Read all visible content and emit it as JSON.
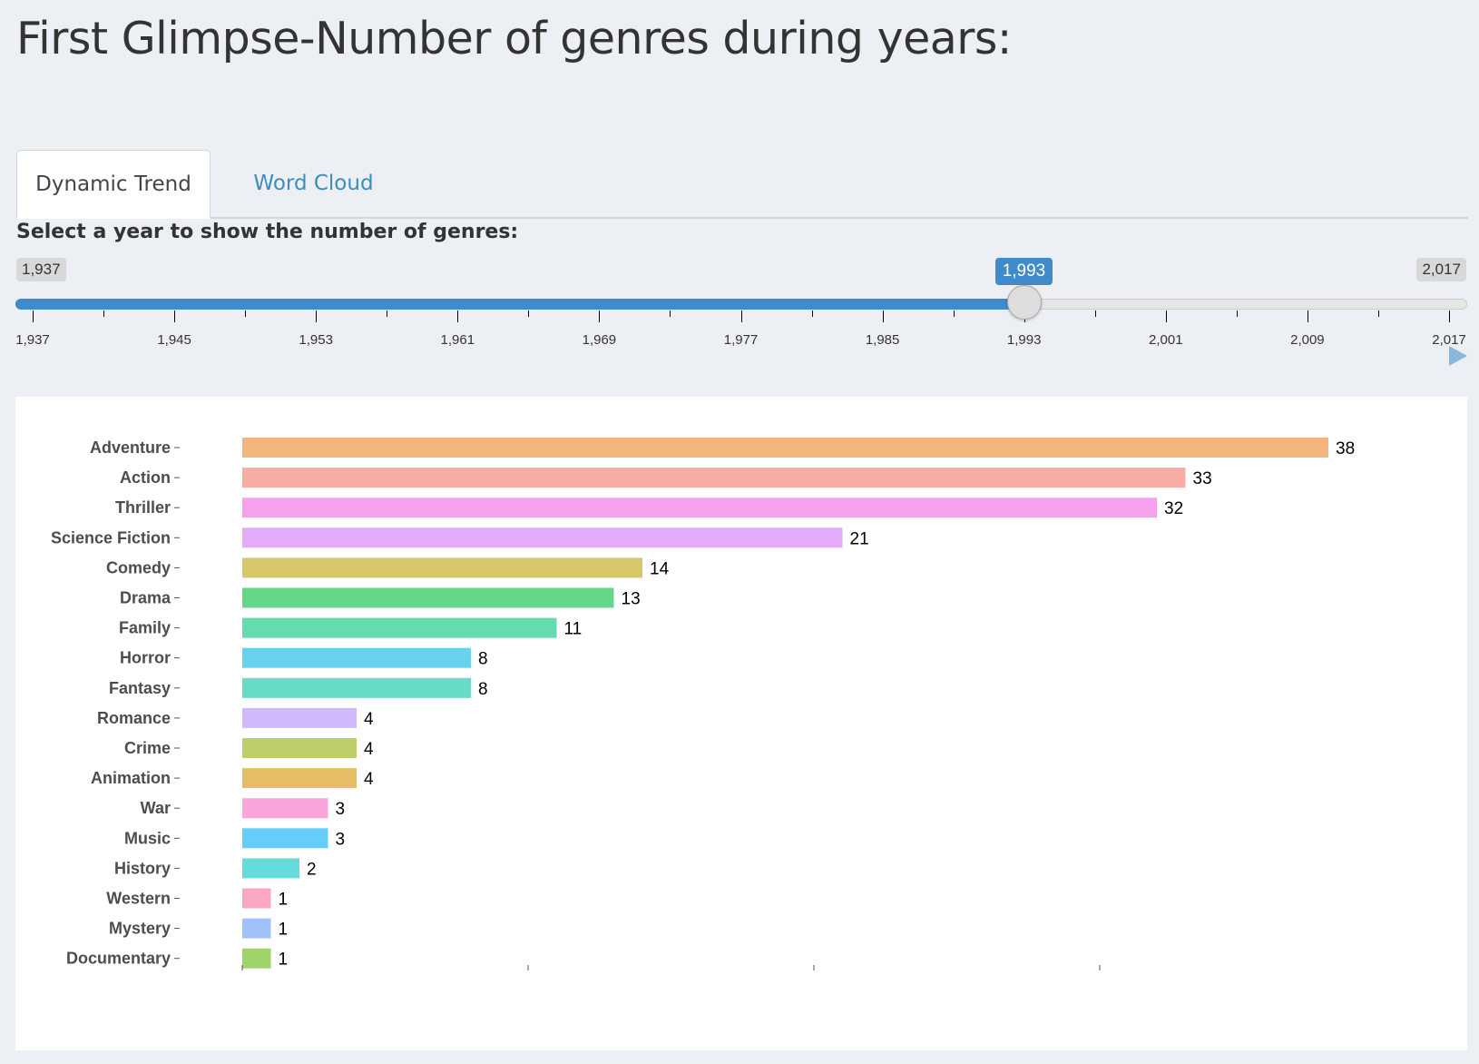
{
  "page": {
    "title": "First Glimpse-Number of genres during years:"
  },
  "tabs": [
    {
      "label": "Dynamic Trend",
      "active": true
    },
    {
      "label": "Word Cloud",
      "active": false
    }
  ],
  "slider": {
    "label": "Select a year to show the number of genres:",
    "min_label": "1,937",
    "max_label": "2,017",
    "value_label": "1,993",
    "min": 1937,
    "max": 2017,
    "value": 1993,
    "step_minor": 4,
    "tick_labels": [
      "1,937",
      "1,945",
      "1,953",
      "1,961",
      "1,969",
      "1,977",
      "1,985",
      "1,993",
      "2,001",
      "2,009",
      "2,017"
    ],
    "fill_color": "#428bca",
    "play_icon": "play-icon"
  },
  "chart_data": {
    "type": "bar",
    "orientation": "horizontal",
    "categories": [
      "Adventure",
      "Action",
      "Thriller",
      "Science Fiction",
      "Comedy",
      "Drama",
      "Family",
      "Horror",
      "Fantasy",
      "Romance",
      "Crime",
      "Animation",
      "War",
      "Music",
      "History",
      "Western",
      "Mystery",
      "Documentary"
    ],
    "values": [
      38,
      33,
      32,
      21,
      14,
      13,
      11,
      8,
      8,
      4,
      4,
      4,
      3,
      3,
      2,
      1,
      1,
      1
    ],
    "colors": [
      "#f3b57d",
      "#f8aca3",
      "#f6a1ec",
      "#e4abfb",
      "#d6c86a",
      "#66d688",
      "#66dcae",
      "#66d3ee",
      "#66dbc6",
      "#d1b8fb",
      "#bdce6b",
      "#e6bd66",
      "#fba4d9",
      "#66ccf8",
      "#66dbdb",
      "#fba6c4",
      "#a1c1f9",
      "#a0d46a"
    ],
    "data_labels": [
      "38",
      "33",
      "32",
      "21",
      "14",
      "13",
      "11",
      "8",
      "8",
      "4",
      "4",
      "4",
      "3",
      "3",
      "2",
      "1",
      "1",
      "1"
    ],
    "xlim": [
      0,
      40
    ],
    "x_ticks": [
      0,
      10,
      20,
      30
    ],
    "x_tick_labels_shown": false,
    "title": "",
    "xlabel": "",
    "ylabel": "",
    "grid": false
  }
}
